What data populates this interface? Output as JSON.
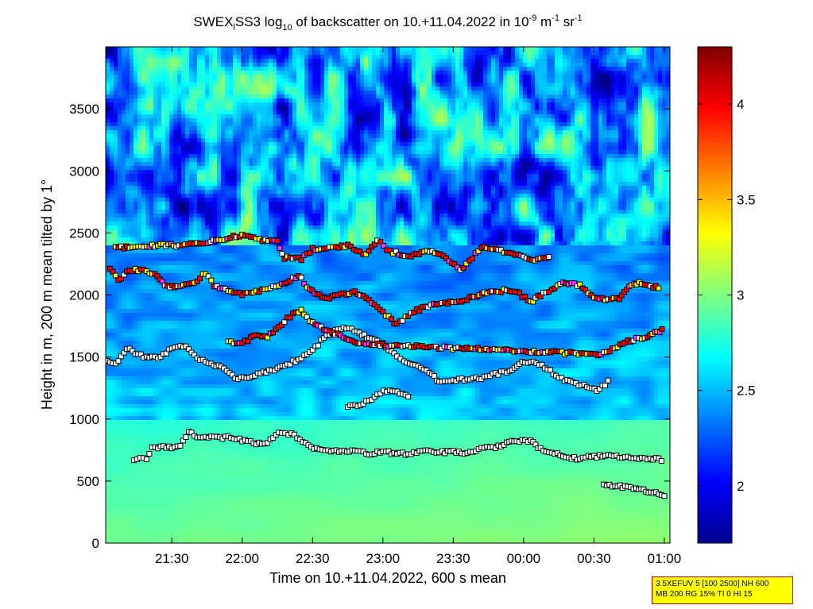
{
  "chart_data": {
    "type": "heatmap",
    "title_parts": {
      "pre1": "SWEX",
      "sub1": "l",
      "pre2": "SS3 log",
      "sub2": "10",
      "pre3": " of backscatter on 10.+11.04.2022 in 10",
      "sup1": "-9",
      "pre4": " m",
      "sup2": "-1",
      "pre5": " sr",
      "sup3": "-1"
    },
    "xlabel": "Time on 10.+11.04.2022, 600 s mean",
    "ylabel": "Height in m, 200 m mean tilted by 1°",
    "x_ticks": [
      "21:30",
      "22:00",
      "22:30",
      "23:00",
      "23:30",
      "00:00",
      "00:30",
      "01:00"
    ],
    "x_tick_hours": [
      21.5,
      22.0,
      22.5,
      23.0,
      23.5,
      24.0,
      24.5,
      25.0
    ],
    "xlim_hours": [
      21.03,
      25.04
    ],
    "y_ticks": [
      "0",
      "500",
      "1000",
      "1500",
      "2000",
      "2500",
      "3000",
      "3500"
    ],
    "y_tick_values": [
      0,
      500,
      1000,
      1500,
      2000,
      2500,
      3000,
      3500
    ],
    "ylim": [
      0,
      4000
    ],
    "colorbar": {
      "ticks": [
        "2",
        "2.5",
        "3",
        "3.5",
        "4"
      ],
      "tick_values": [
        2,
        2.5,
        3,
        3.5,
        4
      ],
      "range": [
        1.7,
        4.3
      ],
      "colormap": "jet"
    },
    "layers": [
      {
        "name": "lowest layer",
        "points": [
          [
            21.23,
            680
          ],
          [
            21.32,
            680
          ],
          [
            21.36,
            770
          ],
          [
            21.48,
            770
          ],
          [
            21.56,
            790
          ],
          [
            21.62,
            900
          ],
          [
            21.7,
            850
          ],
          [
            21.8,
            850
          ],
          [
            21.9,
            850
          ],
          [
            22.0,
            830
          ],
          [
            22.1,
            800
          ],
          [
            22.18,
            810
          ],
          [
            22.26,
            880
          ],
          [
            22.35,
            880
          ],
          [
            22.45,
            800
          ],
          [
            22.55,
            750
          ],
          [
            22.65,
            740
          ],
          [
            22.8,
            750
          ],
          [
            22.9,
            720
          ],
          [
            23.0,
            740
          ],
          [
            23.1,
            720
          ],
          [
            23.2,
            720
          ],
          [
            23.3,
            740
          ],
          [
            23.4,
            730
          ],
          [
            23.5,
            740
          ],
          [
            23.6,
            730
          ],
          [
            23.7,
            760
          ],
          [
            23.8,
            770
          ],
          [
            23.88,
            800
          ],
          [
            23.95,
            830
          ],
          [
            24.05,
            820
          ],
          [
            24.12,
            760
          ],
          [
            24.2,
            730
          ],
          [
            24.3,
            690
          ],
          [
            24.4,
            680
          ],
          [
            24.5,
            700
          ],
          [
            24.6,
            700
          ],
          [
            24.7,
            690
          ],
          [
            24.8,
            680
          ],
          [
            24.9,
            680
          ],
          [
            25.0,
            670
          ]
        ]
      },
      {
        "name": "evening low layer",
        "points": [
          [
            24.57,
            470
          ],
          [
            24.65,
            460
          ],
          [
            24.72,
            450
          ],
          [
            24.8,
            440
          ],
          [
            24.87,
            420
          ],
          [
            24.94,
            400
          ],
          [
            25.0,
            390
          ],
          [
            25.02,
            380
          ]
        ]
      },
      {
        "name": "middle layer",
        "points": [
          [
            21.04,
            1480
          ],
          [
            21.1,
            1450
          ],
          [
            21.18,
            1570
          ],
          [
            21.3,
            1500
          ],
          [
            21.4,
            1500
          ],
          [
            21.52,
            1580
          ],
          [
            21.6,
            1580
          ],
          [
            21.7,
            1470
          ],
          [
            21.78,
            1450
          ],
          [
            21.85,
            1420
          ],
          [
            21.95,
            1330
          ],
          [
            22.05,
            1340
          ],
          [
            22.15,
            1380
          ],
          [
            22.25,
            1400
          ],
          [
            22.32,
            1440
          ],
          [
            22.38,
            1470
          ],
          [
            22.5,
            1560
          ],
          [
            22.6,
            1670
          ],
          [
            22.7,
            1730
          ],
          [
            22.78,
            1720
          ],
          [
            22.85,
            1680
          ],
          [
            22.92,
            1640
          ],
          [
            23.0,
            1600
          ],
          [
            23.1,
            1500
          ],
          [
            23.15,
            1460
          ],
          [
            23.25,
            1420
          ],
          [
            23.33,
            1370
          ],
          [
            23.4,
            1300
          ],
          [
            23.5,
            1310
          ],
          [
            23.6,
            1320
          ],
          [
            23.7,
            1330
          ],
          [
            23.8,
            1360
          ],
          [
            23.9,
            1390
          ],
          [
            23.97,
            1450
          ],
          [
            24.05,
            1460
          ],
          [
            24.15,
            1420
          ],
          [
            24.25,
            1330
          ],
          [
            24.35,
            1290
          ],
          [
            24.45,
            1260
          ],
          [
            24.52,
            1230
          ],
          [
            24.58,
            1280
          ],
          [
            24.62,
            1320
          ]
        ]
      },
      {
        "name": "middle detached",
        "points": [
          [
            22.75,
            1100
          ],
          [
            22.82,
            1110
          ],
          [
            22.9,
            1150
          ],
          [
            22.96,
            1200
          ],
          [
            23.05,
            1240
          ],
          [
            23.12,
            1200
          ],
          [
            23.2,
            1190
          ]
        ]
      },
      {
        "name": "upper layer",
        "points": [
          [
            21.06,
            2210
          ],
          [
            21.12,
            2120
          ],
          [
            21.2,
            2200
          ],
          [
            21.3,
            2200
          ],
          [
            21.38,
            2160
          ],
          [
            21.45,
            2080
          ],
          [
            21.52,
            2060
          ],
          [
            21.6,
            2080
          ],
          [
            21.68,
            2120
          ],
          [
            21.74,
            2180
          ],
          [
            21.8,
            2070
          ],
          [
            21.9,
            2030
          ],
          [
            22.0,
            2000
          ],
          [
            22.1,
            2030
          ],
          [
            22.2,
            2060
          ],
          [
            22.3,
            2090
          ],
          [
            22.4,
            2160
          ],
          [
            22.48,
            2040
          ],
          [
            22.55,
            2000
          ],
          [
            22.62,
            1980
          ],
          [
            22.7,
            2000
          ],
          [
            22.8,
            2030
          ],
          [
            22.9,
            1960
          ],
          [
            23.0,
            1860
          ],
          [
            23.1,
            1760
          ],
          [
            23.2,
            1860
          ],
          [
            23.3,
            1900
          ],
          [
            23.4,
            1930
          ],
          [
            23.5,
            1940
          ],
          [
            23.58,
            1960
          ],
          [
            23.65,
            1990
          ],
          [
            23.72,
            2020
          ],
          [
            23.8,
            2030
          ],
          [
            23.9,
            2040
          ],
          [
            23.97,
            2010
          ],
          [
            24.05,
            1940
          ],
          [
            24.12,
            2000
          ],
          [
            24.2,
            2050
          ],
          [
            24.3,
            2100
          ],
          [
            24.4,
            2080
          ],
          [
            24.5,
            1980
          ],
          [
            24.6,
            1960
          ],
          [
            24.68,
            1970
          ],
          [
            24.75,
            2060
          ],
          [
            24.82,
            2100
          ],
          [
            24.9,
            2070
          ],
          [
            24.98,
            2060
          ]
        ]
      },
      {
        "name": "top layer",
        "points": [
          [
            21.1,
            2380
          ],
          [
            21.4,
            2400
          ],
          [
            21.55,
            2400
          ],
          [
            21.7,
            2420
          ],
          [
            21.85,
            2440
          ],
          [
            21.98,
            2480
          ],
          [
            22.1,
            2450
          ],
          [
            22.25,
            2430
          ],
          [
            22.3,
            2300
          ],
          [
            22.42,
            2290
          ],
          [
            22.5,
            2370
          ],
          [
            22.6,
            2380
          ],
          [
            22.75,
            2400
          ],
          [
            22.88,
            2330
          ],
          [
            22.96,
            2440
          ],
          [
            23.05,
            2350
          ],
          [
            23.2,
            2310
          ],
          [
            23.35,
            2360
          ],
          [
            23.45,
            2300
          ],
          [
            23.55,
            2200
          ],
          [
            23.7,
            2380
          ],
          [
            23.8,
            2370
          ],
          [
            23.9,
            2340
          ],
          [
            24.0,
            2300
          ],
          [
            24.1,
            2280
          ],
          [
            24.2,
            2300
          ]
        ]
      },
      {
        "name": "high upper fragments",
        "points": [
          [
            21.9,
            1620
          ],
          [
            22.0,
            1610
          ],
          [
            22.1,
            1680
          ],
          [
            22.18,
            1660
          ],
          [
            22.36,
            1850
          ],
          [
            22.42,
            1880
          ],
          [
            22.48,
            1780
          ],
          [
            22.8,
            1620
          ],
          [
            22.9,
            1600
          ],
          [
            24.55,
            1520
          ],
          [
            24.65,
            1570
          ],
          [
            24.72,
            1620
          ],
          [
            24.8,
            1650
          ],
          [
            24.88,
            1660
          ],
          [
            24.95,
            1700
          ],
          [
            25.0,
            1730
          ]
        ]
      }
    ]
  },
  "info_box": {
    "line1": "3.5XEFUV 5 [100 2500] NH 600",
    "line2": "MB 200 RG 15% TI 0 HI 15"
  }
}
